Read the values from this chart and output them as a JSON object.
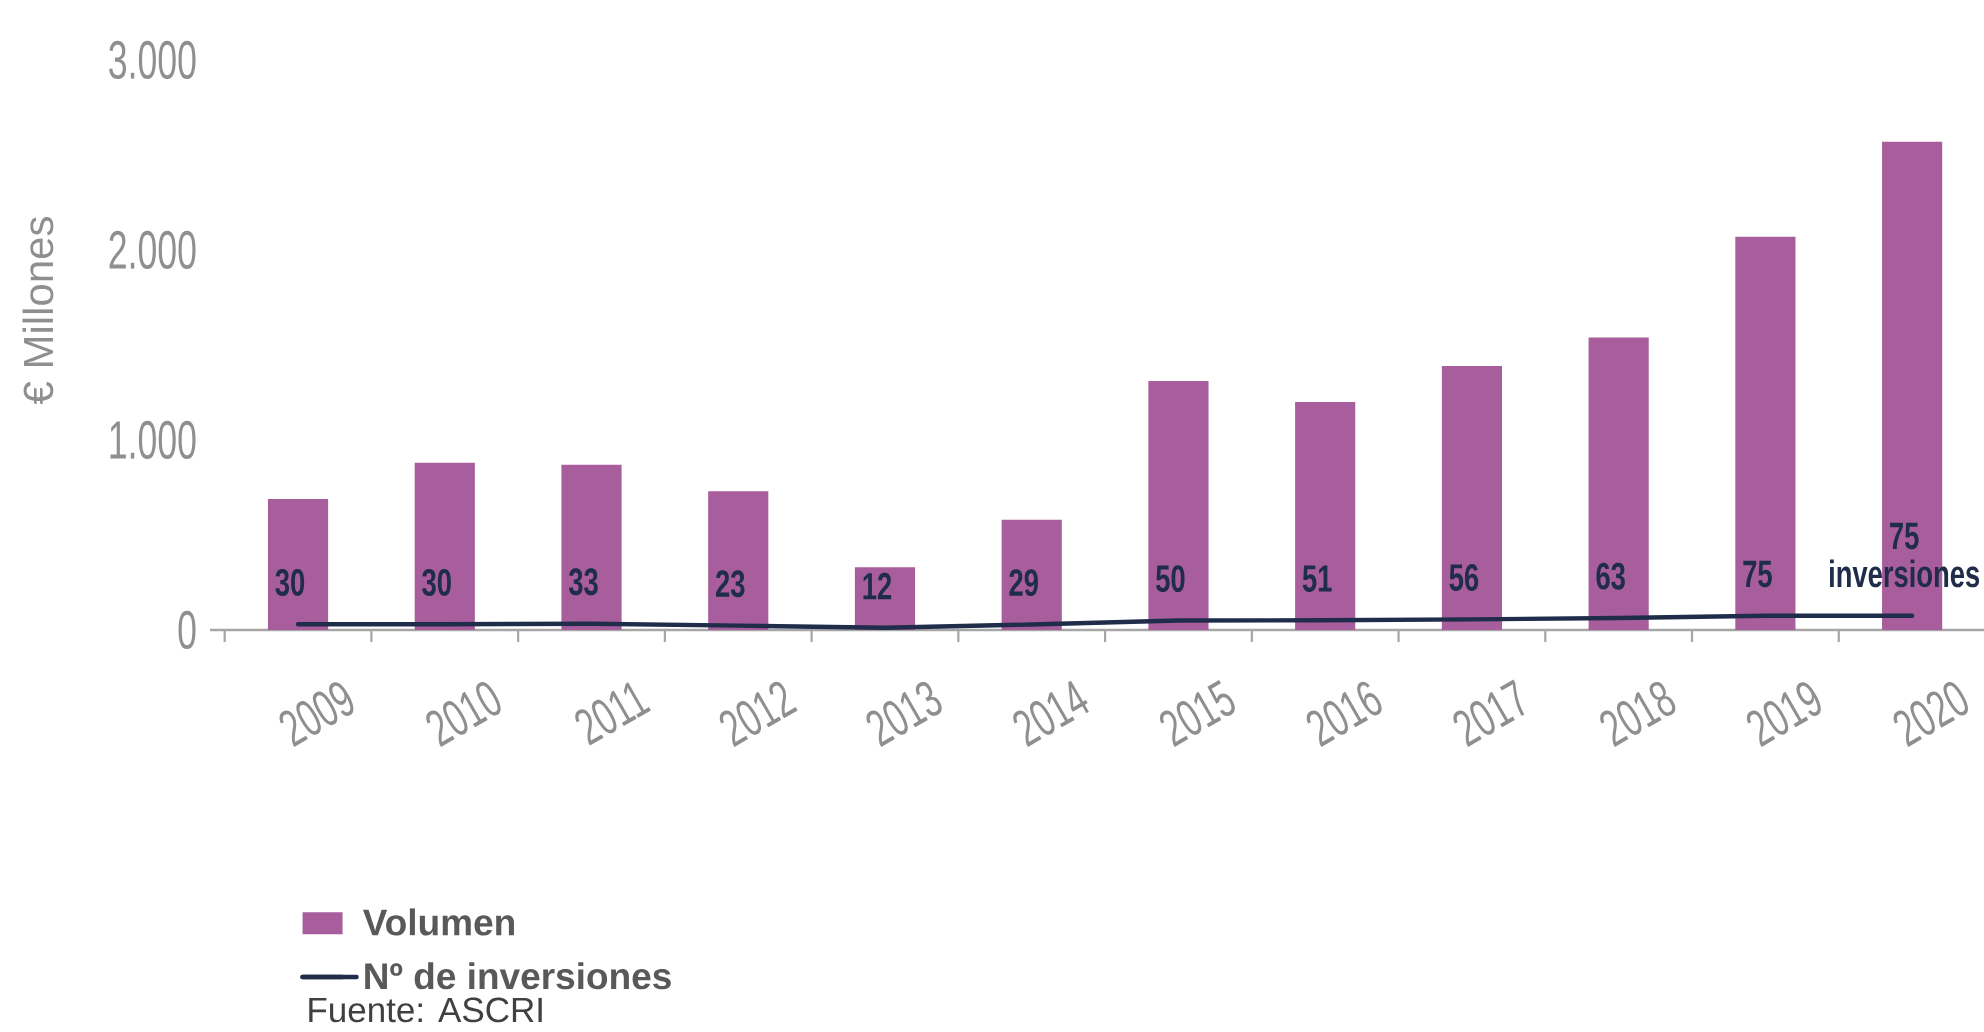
{
  "chart_data": {
    "type": "bar",
    "ylabel": "€ Millones",
    "categories": [
      "2009",
      "2010",
      "2011",
      "2012",
      "2013",
      "2014",
      "2015",
      "2016",
      "2017",
      "2018",
      "2019",
      "2020"
    ],
    "series": [
      {
        "name": "Volumen",
        "color": "#a85e9c",
        "values": [
          690,
          880,
          870,
          730,
          330,
          580,
          1310,
          1200,
          1390,
          1540,
          2070,
          2570
        ]
      },
      {
        "name": "Nº de inversiones",
        "type": "line",
        "color": "#1f2d4a",
        "marker": "none",
        "line_style": "solid",
        "values": [
          30,
          30,
          33,
          23,
          12,
          29,
          50,
          51,
          56,
          63,
          75,
          75
        ],
        "value_labels": [
          "30",
          "30",
          "33",
          "23",
          "12",
          "29",
          "50",
          "51",
          "56",
          "63",
          "75",
          "75 inversiones"
        ]
      }
    ],
    "ylim": [
      0,
      3000
    ],
    "yticks": [
      0,
      {
        "value": 1000,
        "label": "1.000"
      },
      {
        "value": 2000,
        "label": "2.000"
      },
      {
        "value": 3000,
        "label": "3.000"
      }
    ],
    "legend": "bottom left",
    "annotations": [
      "Fuente: ASCRI"
    ]
  }
}
